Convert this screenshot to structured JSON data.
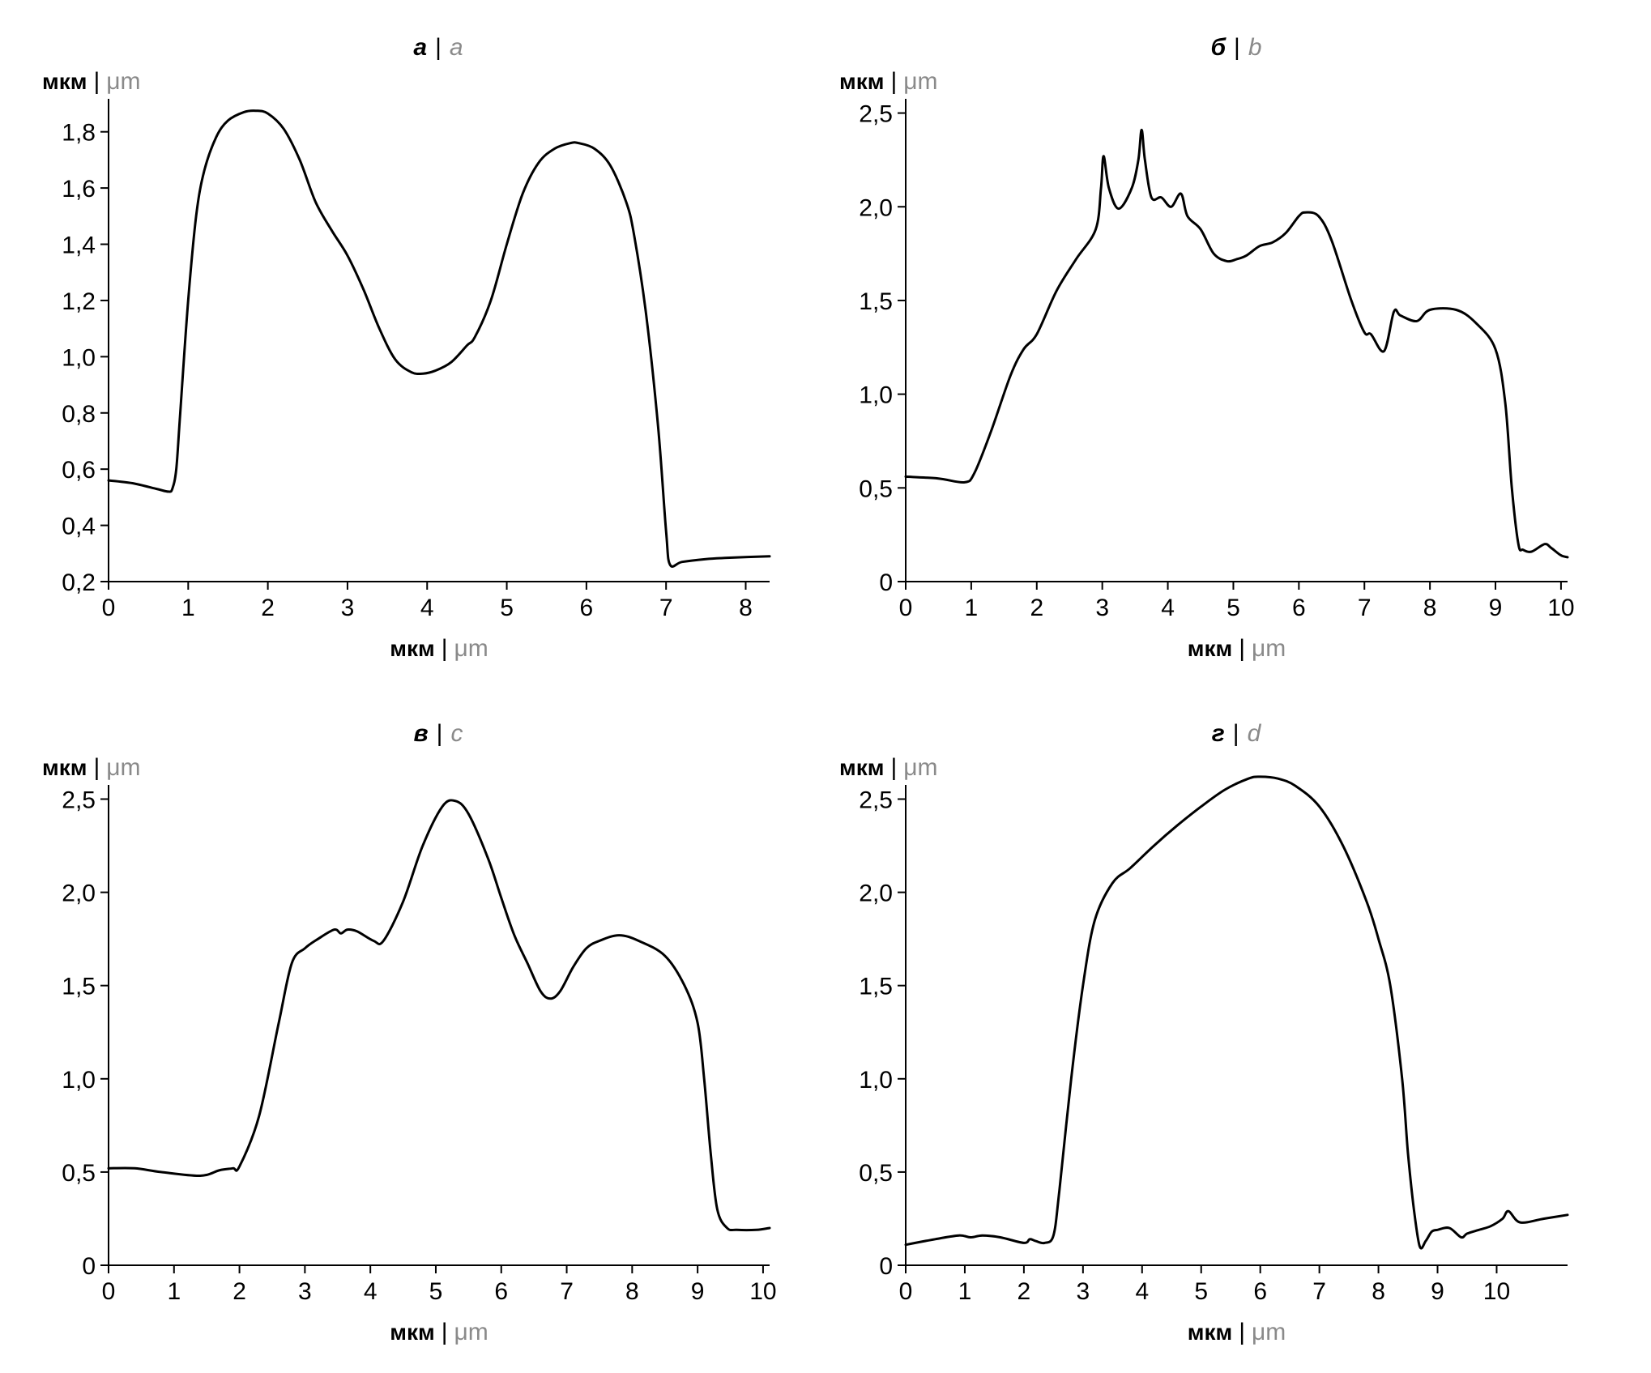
{
  "chart_data": [
    {
      "type": "line",
      "title_ru": "а",
      "title_en": "a",
      "separator": "|",
      "ylabel_ru": "мкм",
      "ylabel_en": "μm",
      "xlabel_ru": "мкм",
      "xlabel_en": "μm",
      "xlim": [
        0,
        8.3
      ],
      "ylim": [
        0.2,
        1.9
      ],
      "xticks": [
        0,
        1,
        2,
        3,
        4,
        5,
        6,
        7,
        8
      ],
      "xtick_labels": [
        "0",
        "1",
        "2",
        "3",
        "4",
        "5",
        "6",
        "7",
        "8"
      ],
      "yticks": [
        0.2,
        0.4,
        0.6,
        0.8,
        1.0,
        1.2,
        1.4,
        1.6,
        1.8
      ],
      "ytick_labels": [
        "0,2",
        "0,4",
        "0,6",
        "0,8",
        "1,0",
        "1,2",
        "1,4",
        "1,6",
        "1,8"
      ],
      "series": [
        {
          "x": [
            0,
            0.3,
            0.6,
            0.75,
            0.8,
            0.85,
            0.9,
            1.0,
            1.1,
            1.2,
            1.35,
            1.5,
            1.7,
            1.85,
            2.0,
            2.2,
            2.4,
            2.6,
            2.8,
            3.0,
            3.2,
            3.4,
            3.6,
            3.8,
            3.95,
            4.1,
            4.3,
            4.5,
            4.6,
            4.8,
            5.0,
            5.2,
            5.4,
            5.6,
            5.8,
            5.9,
            6.1,
            6.3,
            6.5,
            6.6,
            6.75,
            6.9,
            7.0,
            7.05,
            7.2,
            7.5,
            7.8,
            8.3
          ],
          "y": [
            0.56,
            0.55,
            0.53,
            0.52,
            0.53,
            0.6,
            0.8,
            1.2,
            1.5,
            1.66,
            1.78,
            1.84,
            1.87,
            1.875,
            1.865,
            1.81,
            1.7,
            1.55,
            1.45,
            1.36,
            1.24,
            1.1,
            0.99,
            0.945,
            0.94,
            0.95,
            0.98,
            1.04,
            1.07,
            1.2,
            1.4,
            1.58,
            1.69,
            1.74,
            1.76,
            1.76,
            1.74,
            1.68,
            1.55,
            1.43,
            1.15,
            0.75,
            0.38,
            0.26,
            0.27,
            0.28,
            0.285,
            0.29
          ]
        }
      ]
    },
    {
      "type": "line",
      "title_ru": "б",
      "title_en": "b",
      "separator": "|",
      "ylabel_ru": "мкм",
      "ylabel_en": "μm",
      "xlabel_ru": "мкм",
      "xlabel_en": "μm",
      "xlim": [
        0,
        10.1
      ],
      "ylim": [
        0,
        2.55
      ],
      "xticks": [
        0,
        1,
        2,
        3,
        4,
        5,
        6,
        7,
        8,
        9,
        10
      ],
      "xtick_labels": [
        "0",
        "1",
        "2",
        "3",
        "4",
        "5",
        "6",
        "7",
        "8",
        "9",
        "10"
      ],
      "yticks": [
        0,
        0.5,
        1.0,
        1.5,
        2.0,
        2.5
      ],
      "ytick_labels": [
        "0",
        "0,5",
        "1,0",
        "1,5",
        "2,0",
        "2,5"
      ],
      "series": [
        {
          "x": [
            0,
            0.5,
            0.9,
            1.05,
            1.3,
            1.6,
            1.8,
            2.0,
            2.3,
            2.6,
            2.9,
            2.98,
            3.02,
            3.1,
            3.25,
            3.45,
            3.55,
            3.6,
            3.65,
            3.75,
            3.9,
            4.05,
            4.2,
            4.3,
            4.5,
            4.7,
            4.9,
            5.05,
            5.2,
            5.4,
            5.6,
            5.8,
            6.0,
            6.1,
            6.3,
            6.5,
            6.8,
            7.0,
            7.1,
            7.3,
            7.45,
            7.55,
            7.8,
            8.0,
            8.4,
            8.7,
            9.0,
            9.15,
            9.25,
            9.35,
            9.42,
            9.55,
            9.75,
            9.85,
            10.0,
            10.1
          ],
          "y": [
            0.56,
            0.55,
            0.53,
            0.58,
            0.8,
            1.1,
            1.24,
            1.32,
            1.55,
            1.72,
            1.88,
            2.1,
            2.27,
            2.1,
            1.99,
            2.1,
            2.25,
            2.41,
            2.25,
            2.05,
            2.05,
            2.0,
            2.07,
            1.95,
            1.88,
            1.75,
            1.71,
            1.72,
            1.74,
            1.79,
            1.81,
            1.86,
            1.95,
            1.97,
            1.95,
            1.82,
            1.5,
            1.33,
            1.32,
            1.23,
            1.44,
            1.42,
            1.39,
            1.45,
            1.45,
            1.38,
            1.24,
            0.95,
            0.5,
            0.2,
            0.17,
            0.16,
            0.2,
            0.18,
            0.14,
            0.13
          ]
        }
      ]
    },
    {
      "type": "line",
      "title_ru": "в",
      "title_en": "c",
      "separator": "|",
      "ylabel_ru": "мкм",
      "ylabel_en": "μm",
      "xlabel_ru": "мкм",
      "xlabel_en": "μm",
      "xlim": [
        0,
        10.1
      ],
      "ylim": [
        0,
        2.55
      ],
      "xticks": [
        0,
        1,
        2,
        3,
        4,
        5,
        6,
        7,
        8,
        9,
        10
      ],
      "xtick_labels": [
        "0",
        "1",
        "2",
        "3",
        "4",
        "5",
        "6",
        "7",
        "8",
        "9",
        "10"
      ],
      "yticks": [
        0,
        0.5,
        1.0,
        1.5,
        2.0,
        2.5
      ],
      "ytick_labels": [
        "0",
        "0,5",
        "1,0",
        "1,5",
        "2,0",
        "2,5"
      ],
      "series": [
        {
          "x": [
            0,
            0.4,
            0.8,
            1.4,
            1.7,
            1.9,
            2.0,
            2.3,
            2.6,
            2.8,
            3.0,
            3.2,
            3.45,
            3.55,
            3.65,
            3.8,
            4.05,
            4.2,
            4.5,
            4.8,
            5.1,
            5.3,
            5.5,
            5.8,
            6.0,
            6.2,
            6.4,
            6.6,
            6.75,
            6.9,
            7.1,
            7.3,
            7.5,
            7.8,
            8.1,
            8.5,
            8.8,
            9.0,
            9.1,
            9.2,
            9.3,
            9.45,
            9.6,
            9.9,
            10.1
          ],
          "y": [
            0.52,
            0.52,
            0.5,
            0.48,
            0.51,
            0.52,
            0.53,
            0.8,
            1.3,
            1.62,
            1.7,
            1.75,
            1.8,
            1.78,
            1.8,
            1.79,
            1.74,
            1.74,
            1.95,
            2.25,
            2.46,
            2.49,
            2.42,
            2.18,
            1.97,
            1.77,
            1.62,
            1.47,
            1.43,
            1.47,
            1.6,
            1.7,
            1.74,
            1.77,
            1.74,
            1.66,
            1.5,
            1.3,
            1.0,
            0.6,
            0.3,
            0.2,
            0.19,
            0.19,
            0.2
          ]
        }
      ]
    },
    {
      "type": "line",
      "title_ru": "г",
      "title_en": "d",
      "separator": "|",
      "ylabel_ru": "мкм",
      "ylabel_en": "μm",
      "xlabel_ru": "мкм",
      "xlabel_en": "μm",
      "xlim": [
        0,
        11.2
      ],
      "ylim": [
        0,
        2.55
      ],
      "xticks": [
        0,
        1,
        2,
        3,
        4,
        5,
        6,
        7,
        8,
        9,
        10
      ],
      "xtick_labels": [
        "0",
        "1",
        "2",
        "3",
        "4",
        "5",
        "6",
        "7",
        "8",
        "9",
        "10"
      ],
      "yticks": [
        0,
        0.5,
        1.0,
        1.5,
        2.0,
        2.5
      ],
      "ytick_labels": [
        "0",
        "0,5",
        "1,0",
        "1,5",
        "2,0",
        "2,5"
      ],
      "series": [
        {
          "x": [
            0,
            0.5,
            0.9,
            1.1,
            1.3,
            1.6,
            2.0,
            2.1,
            2.2,
            2.35,
            2.5,
            2.6,
            2.8,
            3.0,
            3.2,
            3.5,
            3.8,
            4.2,
            4.6,
            5.0,
            5.4,
            5.8,
            6.0,
            6.3,
            6.6,
            7.0,
            7.4,
            7.8,
            8.0,
            8.2,
            8.4,
            8.5,
            8.6,
            8.7,
            8.8,
            8.9,
            9.0,
            9.2,
            9.4,
            9.5,
            9.7,
            9.9,
            10.1,
            10.2,
            10.4,
            10.8,
            11.2
          ],
          "y": [
            0.11,
            0.14,
            0.16,
            0.15,
            0.16,
            0.15,
            0.12,
            0.14,
            0.13,
            0.12,
            0.16,
            0.4,
            1.0,
            1.5,
            1.85,
            2.05,
            2.13,
            2.25,
            2.36,
            2.46,
            2.55,
            2.61,
            2.62,
            2.61,
            2.57,
            2.46,
            2.25,
            1.95,
            1.75,
            1.5,
            1.0,
            0.6,
            0.3,
            0.1,
            0.13,
            0.18,
            0.19,
            0.2,
            0.15,
            0.17,
            0.19,
            0.21,
            0.25,
            0.29,
            0.23,
            0.25,
            0.27
          ]
        }
      ]
    }
  ]
}
